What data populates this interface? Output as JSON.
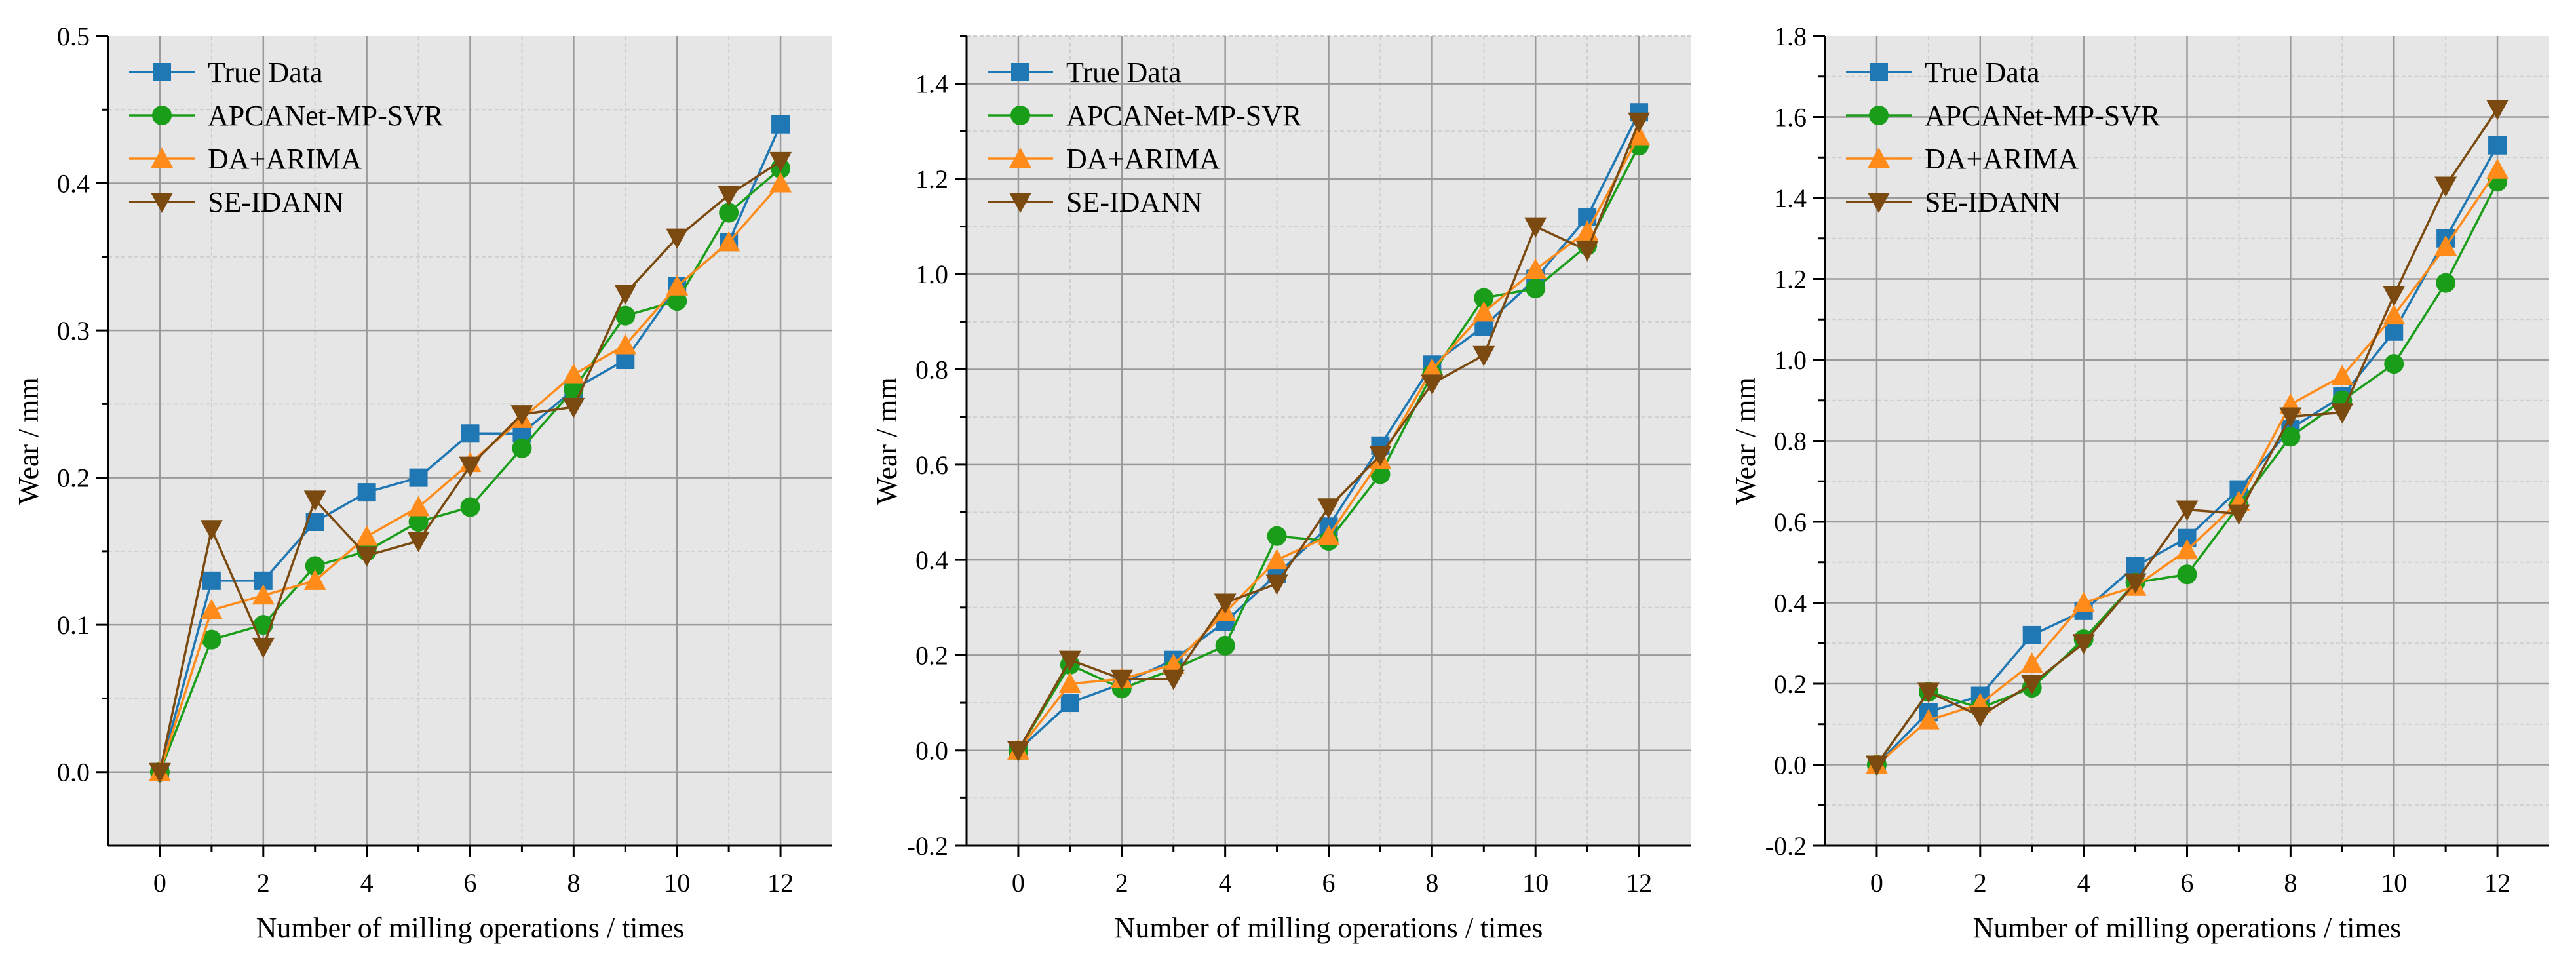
{
  "chart_data": [
    {
      "type": "line",
      "title": "",
      "xlabel": "Number of milling operations  / times",
      "ylabel": "Wear / mm",
      "xlim": [
        -1,
        13
      ],
      "ylim": [
        -0.05,
        0.5
      ],
      "xticks": [
        0,
        2,
        4,
        6,
        8,
        10,
        12
      ],
      "yticks": [
        0.0,
        0.1,
        0.2,
        0.3,
        0.4,
        0.5
      ],
      "ytick_labels": [
        "0.0",
        "0.1",
        "0.2",
        "0.3",
        "0.4",
        "0.5"
      ],
      "grid": true,
      "legend_position": "top-left",
      "x": [
        0,
        1,
        2,
        3,
        4,
        5,
        6,
        7,
        8,
        9,
        10,
        11,
        12
      ],
      "series": [
        {
          "name": "True Data",
          "color": "#1f77b4",
          "marker": "square",
          "values": [
            0,
            0.13,
            0.13,
            0.17,
            0.19,
            0.2,
            0.23,
            0.23,
            0.26,
            0.28,
            0.33,
            0.36,
            0.44
          ]
        },
        {
          "name": "APCANet-MP-SVR",
          "color": "#1a9e1a",
          "marker": "circle",
          "values": [
            0,
            0.09,
            0.1,
            0.14,
            0.15,
            0.17,
            0.18,
            0.22,
            0.26,
            0.31,
            0.32,
            0.38,
            0.41
          ]
        },
        {
          "name": "DA+ARIMA",
          "color": "#ff8c1a",
          "marker": "triangle-up",
          "values": [
            0,
            0.11,
            0.12,
            0.13,
            0.16,
            0.18,
            0.21,
            0.24,
            0.27,
            0.29,
            0.33,
            0.36,
            0.4
          ]
        },
        {
          "name": "SE-IDANN",
          "color": "#7a4a10",
          "marker": "triangle-down",
          "values": [
            0,
            0.165,
            0.085,
            0.185,
            0.147,
            0.157,
            0.208,
            0.243,
            0.248,
            0.325,
            0.363,
            0.392,
            0.415
          ]
        }
      ]
    },
    {
      "type": "line",
      "title": "",
      "xlabel": "Number of milling operations  / times",
      "ylabel": "Wear / mm",
      "xlim": [
        -1,
        13
      ],
      "ylim": [
        -0.2,
        1.5
      ],
      "xticks": [
        0,
        2,
        4,
        6,
        8,
        10,
        12
      ],
      "yticks": [
        -0.2,
        0.0,
        0.2,
        0.4,
        0.6,
        0.8,
        1.0,
        1.2,
        1.4
      ],
      "ytick_labels": [
        "-0.2",
        "0.0",
        "0.2",
        "0.4",
        "0.6",
        "0.8",
        "1.0",
        "1.2",
        "1.4"
      ],
      "grid": true,
      "legend_position": "top-left",
      "x": [
        0,
        1,
        2,
        3,
        4,
        5,
        6,
        7,
        8,
        9,
        10,
        11,
        12
      ],
      "series": [
        {
          "name": "True Data",
          "color": "#1f77b4",
          "marker": "square",
          "values": [
            0,
            0.1,
            0.14,
            0.19,
            0.27,
            0.37,
            0.47,
            0.64,
            0.81,
            0.89,
            0.99,
            1.12,
            1.34
          ]
        },
        {
          "name": "APCANet-MP-SVR",
          "color": "#1a9e1a",
          "marker": "circle",
          "values": [
            0,
            0.18,
            0.13,
            0.17,
            0.22,
            0.45,
            0.44,
            0.58,
            0.79,
            0.95,
            0.97,
            1.06,
            1.27
          ]
        },
        {
          "name": "DA+ARIMA",
          "color": "#ff8c1a",
          "marker": "triangle-up",
          "values": [
            0,
            0.14,
            0.15,
            0.18,
            0.29,
            0.4,
            0.45,
            0.61,
            0.8,
            0.92,
            1.01,
            1.09,
            1.29
          ]
        },
        {
          "name": "SE-IDANN",
          "color": "#7a4a10",
          "marker": "triangle-down",
          "values": [
            0,
            0.19,
            0.15,
            0.15,
            0.31,
            0.35,
            0.51,
            0.62,
            0.77,
            0.83,
            1.1,
            1.05,
            1.32
          ]
        }
      ]
    },
    {
      "type": "line",
      "title": "",
      "xlabel": "Number of milling operations  / times",
      "ylabel": "Wear / mm",
      "xlim": [
        -1,
        13
      ],
      "ylim": [
        -0.2,
        1.8
      ],
      "xticks": [
        0,
        2,
        4,
        6,
        8,
        10,
        12
      ],
      "yticks": [
        -0.2,
        0.0,
        0.2,
        0.4,
        0.6,
        0.8,
        1.0,
        1.2,
        1.4,
        1.6,
        1.8
      ],
      "ytick_labels": [
        "-0.2",
        "0.0",
        "0.2",
        "0.4",
        "0.6",
        "0.8",
        "1.0",
        "1.2",
        "1.4",
        "1.6",
        "1.8"
      ],
      "grid": true,
      "legend_position": "top-left",
      "x": [
        0,
        1,
        2,
        3,
        4,
        5,
        6,
        7,
        8,
        9,
        10,
        11,
        12
      ],
      "series": [
        {
          "name": "True Data",
          "color": "#1f77b4",
          "marker": "square",
          "values": [
            0,
            0.13,
            0.17,
            0.32,
            0.38,
            0.49,
            0.56,
            0.68,
            0.83,
            0.91,
            1.07,
            1.3,
            1.53
          ]
        },
        {
          "name": "APCANet-MP-SVR",
          "color": "#1a9e1a",
          "marker": "circle",
          "values": [
            0,
            0.18,
            0.14,
            0.19,
            0.31,
            0.45,
            0.47,
            0.64,
            0.81,
            0.9,
            0.99,
            1.19,
            1.44
          ]
        },
        {
          "name": "DA+ARIMA",
          "color": "#ff8c1a",
          "marker": "triangle-up",
          "values": [
            0,
            0.11,
            0.15,
            0.25,
            0.4,
            0.44,
            0.53,
            0.65,
            0.89,
            0.96,
            1.11,
            1.28,
            1.47
          ]
        },
        {
          "name": "SE-IDANN",
          "color": "#7a4a10",
          "marker": "triangle-down",
          "values": [
            0,
            0.18,
            0.12,
            0.2,
            0.3,
            0.45,
            0.63,
            0.62,
            0.86,
            0.87,
            1.16,
            1.43,
            1.62
          ]
        }
      ]
    }
  ]
}
